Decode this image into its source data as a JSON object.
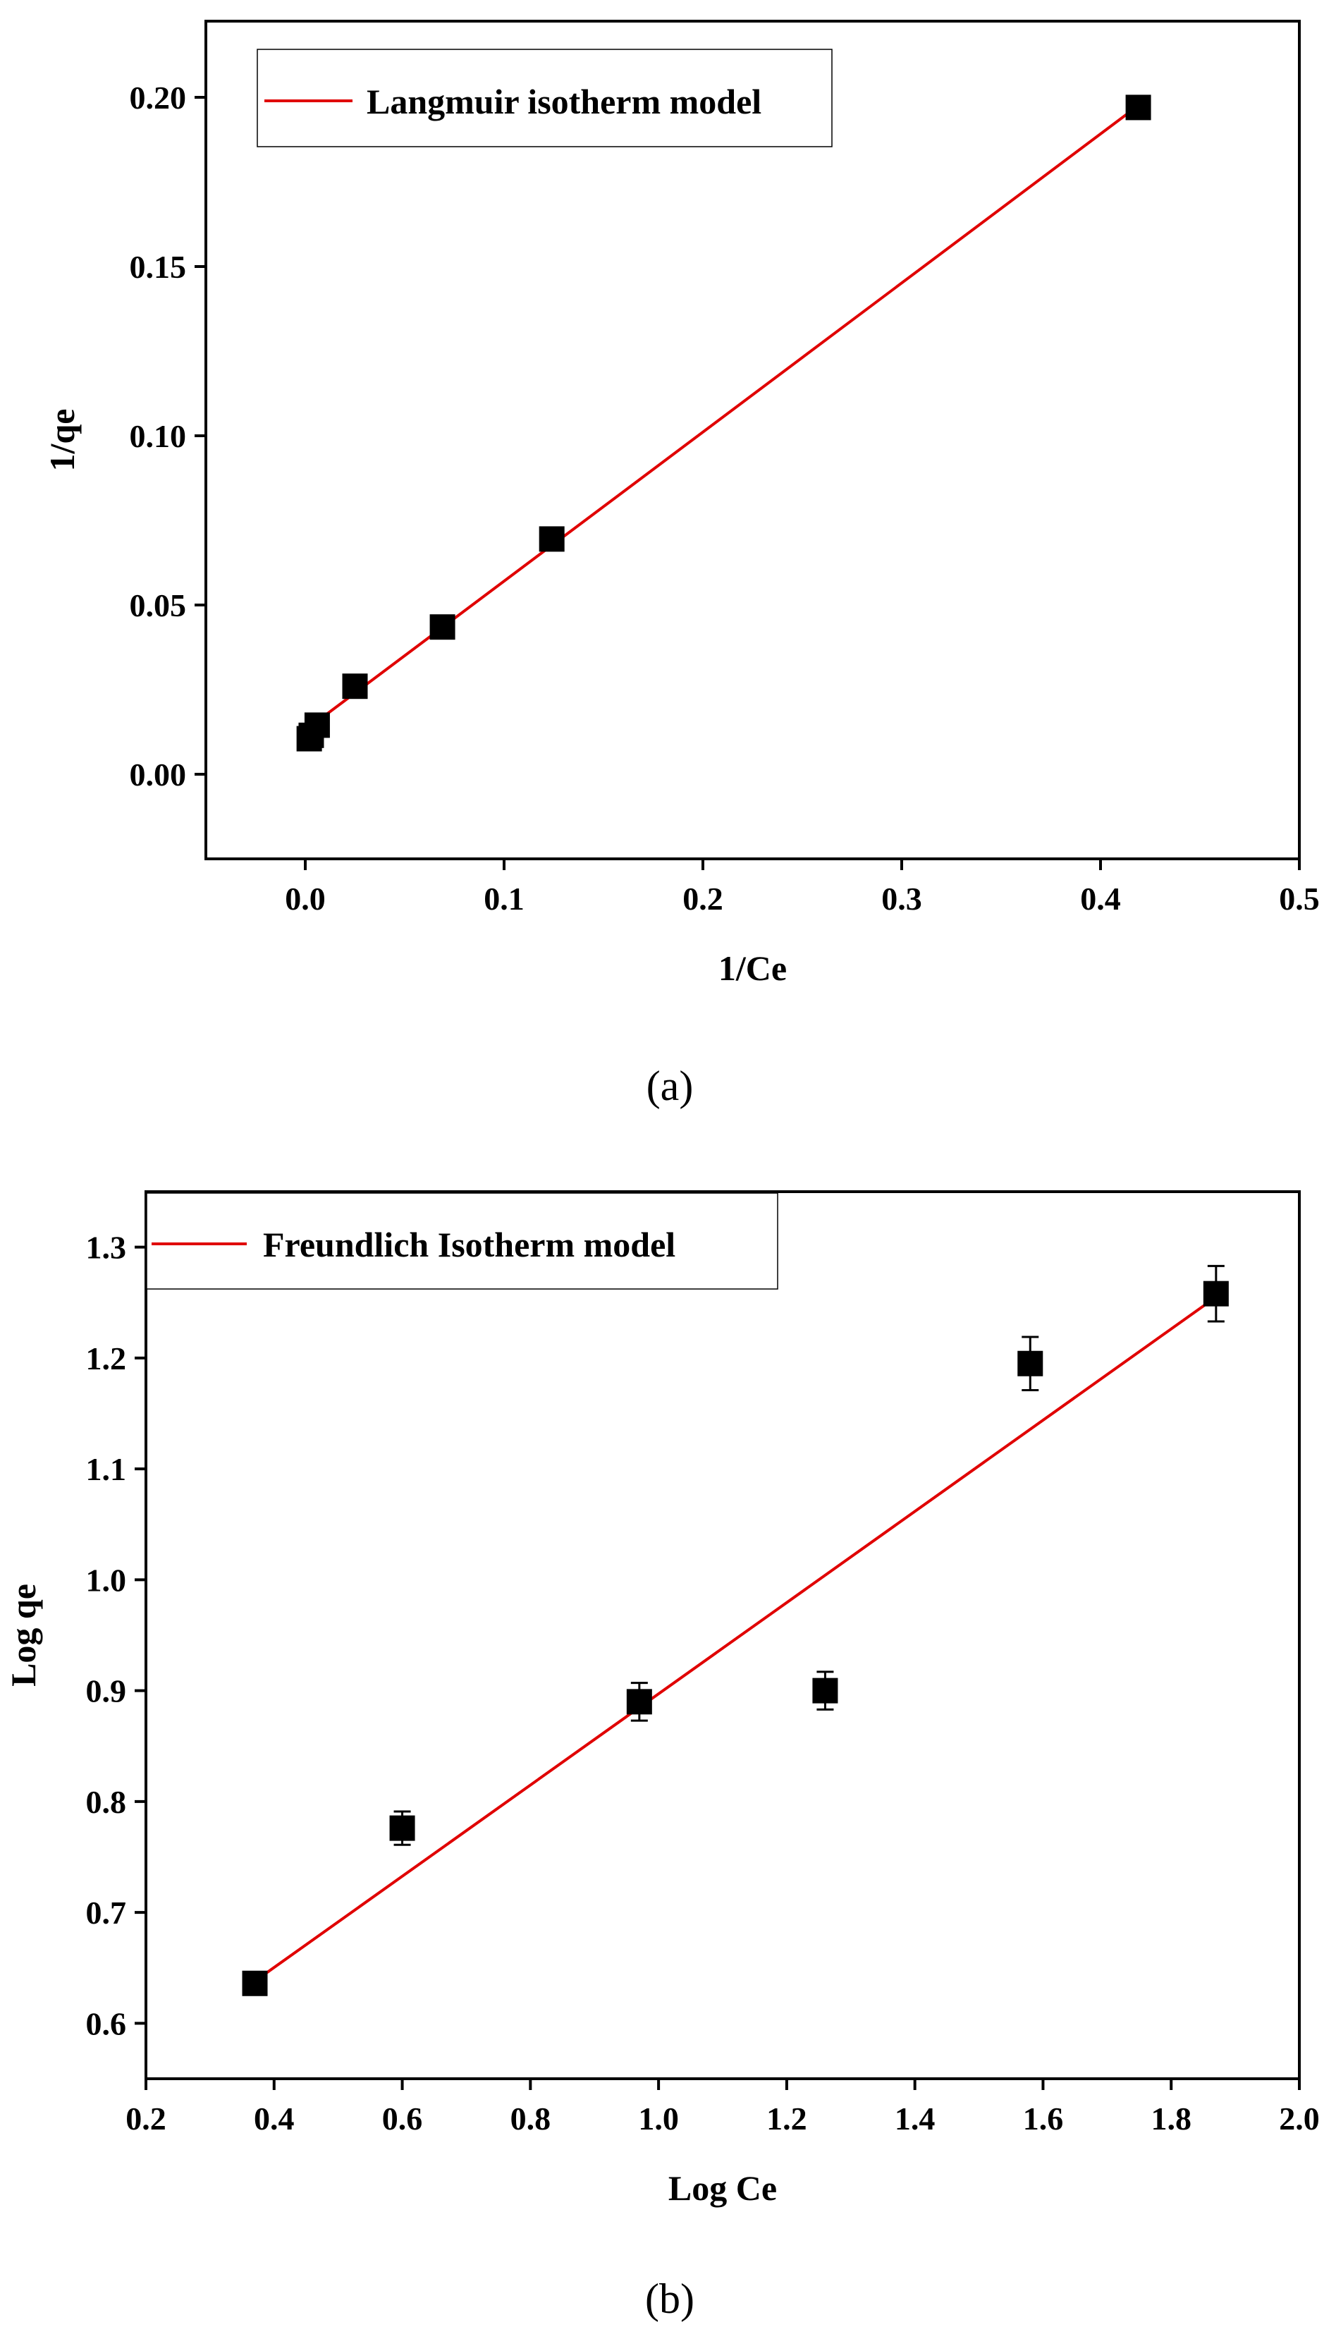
{
  "chart_data": [
    {
      "type": "scatter",
      "panel_label": "(a)",
      "xlabel": "1/Ce",
      "ylabel": "1/qe",
      "xlim": [
        -0.05,
        0.5
      ],
      "ylim": [
        -0.025,
        0.2225
      ],
      "xticks": [
        0.0,
        0.1,
        0.2,
        0.3,
        0.4,
        0.5
      ],
      "xtick_labels": [
        "0.0",
        "0.1",
        "0.2",
        "0.3",
        "0.4",
        "0.5"
      ],
      "yticks": [
        0.0,
        0.05,
        0.1,
        0.15,
        0.2
      ],
      "ytick_labels": [
        "0.00",
        "0.05",
        "0.10",
        "0.15",
        "0.20"
      ],
      "grid": false,
      "legend": {
        "placement": "top-left",
        "entries": [
          "Langmuir isotherm model"
        ]
      },
      "fit_color": "#e00000",
      "marker_color": "#000000",
      "series": [
        {
          "kind": "points",
          "x": [
            0.002,
            0.003,
            0.006,
            0.025,
            0.069,
            0.124,
            0.419
          ],
          "y": [
            0.0105,
            0.0115,
            0.0145,
            0.026,
            0.0435,
            0.0695,
            0.197
          ],
          "err": [
            0.0015,
            0.0015,
            0.0015,
            0.0015,
            0.0015,
            0.0015,
            0.002
          ]
        },
        {
          "kind": "line",
          "name": "Langmuir isotherm model",
          "x": [
            0.0,
            0.42
          ],
          "y": [
            0.013,
            0.198
          ]
        }
      ]
    },
    {
      "type": "scatter",
      "panel_label": "(b)",
      "xlabel": "Log Ce",
      "ylabel": "Log qe",
      "xlim": [
        0.2,
        2.0
      ],
      "ylim": [
        0.55,
        1.35
      ],
      "xticks": [
        0.2,
        0.4,
        0.6,
        0.8,
        1.0,
        1.2,
        1.4,
        1.6,
        1.8,
        2.0
      ],
      "xtick_labels": [
        "0.2",
        "0.4",
        "0.6",
        "0.8",
        "1.0",
        "1.2",
        "1.4",
        "1.6",
        "1.8",
        "2.0"
      ],
      "yticks": [
        0.6,
        0.7,
        0.8,
        0.9,
        1.0,
        1.1,
        1.2,
        1.3
      ],
      "ytick_labels": [
        "0.6",
        "0.7",
        "0.8",
        "0.9",
        "1.0",
        "1.1",
        "1.2",
        "1.3"
      ],
      "grid": false,
      "legend": {
        "placement": "top-left",
        "entries": [
          "Freundlich Isotherm model"
        ]
      },
      "fit_color": "#e00000",
      "marker_color": "#000000",
      "series": [
        {
          "kind": "points",
          "x": [
            0.37,
            0.6,
            0.97,
            1.26,
            1.58,
            1.87
          ],
          "y": [
            0.636,
            0.776,
            0.89,
            0.9,
            1.195,
            1.258
          ],
          "err": [
            0.006,
            0.015,
            0.017,
            0.017,
            0.024,
            0.025
          ]
        },
        {
          "kind": "line",
          "name": "Freundlich Isotherm model",
          "x": [
            0.37,
            1.87
          ],
          "y": [
            0.638,
            1.255
          ]
        }
      ]
    }
  ]
}
